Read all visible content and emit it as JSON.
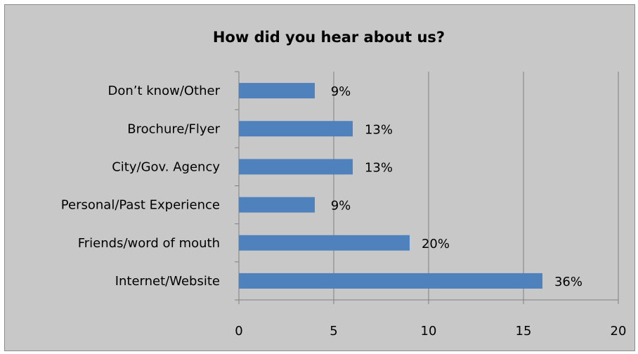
{
  "chart_data": {
    "type": "bar",
    "orientation": "horizontal",
    "title": "How did you hear about us?",
    "categories": [
      "Don’t know/Other",
      "Brochure/Flyer",
      "City/Gov. Agency",
      "Personal/Past Experience",
      "Friends/word of mouth",
      "Internet/Website"
    ],
    "values": [
      4,
      6,
      6,
      4,
      9,
      16
    ],
    "data_labels": [
      "9%",
      "13%",
      "13%",
      "9%",
      "20%",
      "36%"
    ],
    "xlim": [
      0,
      20
    ],
    "x_ticks": [
      "0",
      "5",
      "10",
      "15",
      "20"
    ],
    "grid": "vertical",
    "legend": "none",
    "colors": {
      "bar": "#4f81bd",
      "plot_background": "#c8c8c8",
      "gridline": "#7f7f7f"
    }
  }
}
